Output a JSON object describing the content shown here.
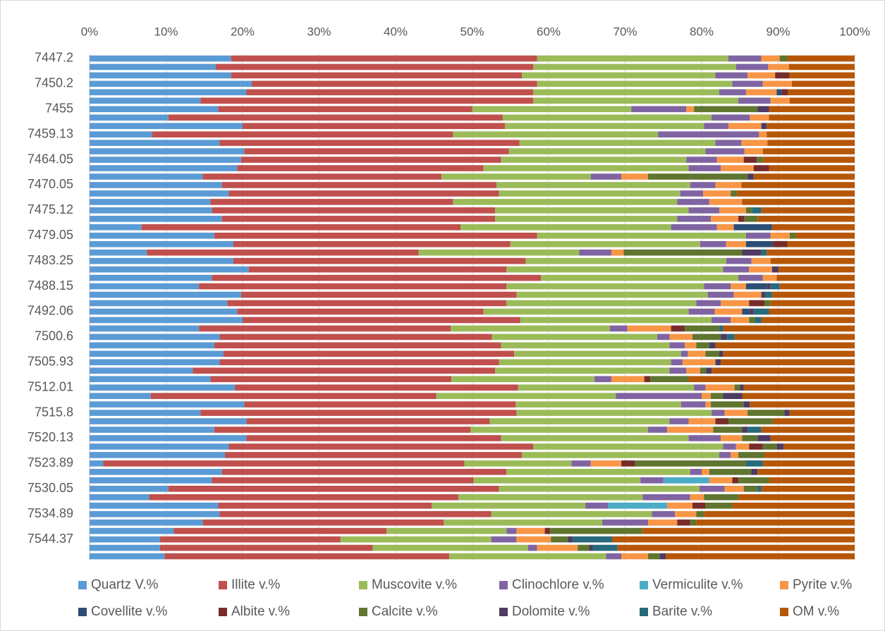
{
  "chart_data": {
    "type": "stacked_bar_100",
    "orientation": "horizontal",
    "categories": [
      "7447.2",
      null,
      null,
      "7450.2",
      null,
      null,
      "7455",
      null,
      null,
      "7459.13",
      null,
      null,
      "7464.05",
      null,
      null,
      "7470.05",
      null,
      null,
      "7475.12",
      null,
      null,
      "7479.05",
      null,
      null,
      "7483.25",
      null,
      null,
      "7488.15",
      null,
      null,
      "7492.06",
      null,
      null,
      "7500.6",
      null,
      null,
      "7505.93",
      null,
      null,
      "7512.01",
      null,
      null,
      "7515.8",
      null,
      null,
      "7520.13",
      null,
      null,
      "7523.89",
      null,
      null,
      "7530.05",
      null,
      null,
      "7534.89",
      null,
      null,
      "7544.37",
      null,
      null
    ],
    "xlim": [
      0,
      100
    ],
    "xticks": [
      {
        "value": 0,
        "label": "0%"
      },
      {
        "value": 10,
        "label": "10%"
      },
      {
        "value": 20,
        "label": "20%"
      },
      {
        "value": 30,
        "label": "30%"
      },
      {
        "value": 40,
        "label": "40%"
      },
      {
        "value": 50,
        "label": "50%"
      },
      {
        "value": 60,
        "label": "60%"
      },
      {
        "value": 70,
        "label": "70%"
      },
      {
        "value": 80,
        "label": "80%"
      },
      {
        "value": 90,
        "label": "90%"
      },
      {
        "value": 100,
        "label": "100%"
      }
    ],
    "grid": true,
    "legend": "bottom",
    "series": [
      {
        "name": "Quartz V.%",
        "color": "#5b9bd5",
        "values": [
          18.5,
          16.5,
          18.5,
          21.2,
          20.5,
          14.5,
          16.8,
          10.3,
          20,
          8.2,
          17,
          20.2,
          19.8,
          19.3,
          14.8,
          17.3,
          18.2,
          15.8,
          16,
          17.3,
          6.8,
          16.3,
          18.8,
          7.5,
          18.8,
          20.8,
          16,
          14.3,
          19.8,
          18,
          19.3,
          20,
          14.3,
          17,
          16.3,
          17.5,
          17,
          13.5,
          15.8,
          19,
          8,
          20.2,
          14.5,
          20.5,
          16.3,
          20.5,
          18.2,
          17.7,
          1.8,
          17.3,
          16,
          10.3,
          7.8,
          16.8,
          17,
          14.8,
          11,
          9.2,
          9.2,
          9.8
        ]
      },
      {
        "name": "Illite v.%",
        "color": "#c0504d",
        "values": [
          40,
          41.5,
          38,
          37.3,
          37.5,
          43.5,
          33.2,
          43.7,
          34.3,
          39.3,
          39.2,
          34.6,
          34,
          32.2,
          31.2,
          35.9,
          35.3,
          31.7,
          37,
          35.7,
          41.7,
          42.2,
          36.2,
          35.5,
          38.2,
          33.7,
          43,
          40.2,
          36,
          36.5,
          32.2,
          36.3,
          32.9,
          35.6,
          37.5,
          38,
          36.5,
          39.5,
          31.5,
          37,
          37.3,
          35.5,
          41.3,
          31.8,
          33.5,
          33.3,
          39.8,
          38.8,
          47.2,
          37.2,
          34.2,
          43.2,
          40.4,
          27.9,
          35.5,
          31.5,
          27.8,
          23.6,
          27.8,
          37.2
        ]
      },
      {
        "name": "Muscovite v.%",
        "color": "#9bbb59",
        "values": [
          25,
          26.5,
          25.3,
          25.5,
          24.3,
          26.8,
          20.8,
          27.3,
          26,
          26.8,
          25.6,
          25.7,
          24.2,
          26.8,
          19.5,
          25.3,
          23.7,
          29.3,
          25.3,
          23.8,
          27.5,
          27.3,
          24.8,
          21,
          26.2,
          28.3,
          25.8,
          25.8,
          25,
          24.8,
          26.8,
          25,
          20.8,
          21.6,
          22,
          21.8,
          22.5,
          22.8,
          18.7,
          23,
          23.5,
          21.6,
          25.5,
          23.5,
          23.2,
          24.5,
          24.8,
          25.8,
          14,
          24,
          21.8,
          26.2,
          24.1,
          20.1,
          21,
          20.7,
          15.7,
          19.7,
          20.3,
          20.5
        ]
      },
      {
        "name": "Clinochlore v.%",
        "color": "#8064a2",
        "values": [
          4.3,
          4.2,
          4.2,
          4,
          3.5,
          4.2,
          7.2,
          5,
          3.2,
          13.2,
          3.4,
          5.1,
          4,
          4.2,
          4,
          3.3,
          3,
          4.2,
          4,
          4.4,
          6,
          3.2,
          3.4,
          4.2,
          3.3,
          3.4,
          3.2,
          3.5,
          3.4,
          3.2,
          3.4,
          2.5,
          2.3,
          1.6,
          2,
          0.9,
          1.5,
          2.2,
          2.2,
          1.5,
          11.2,
          3.2,
          1.7,
          2.5,
          2.5,
          4.2,
          1.7,
          1.5,
          2.5,
          1.5,
          3,
          3.3,
          6.2,
          3,
          3,
          6,
          1.3,
          3.3,
          1.2,
          2
        ]
      },
      {
        "name": "Vermiculite v.%",
        "color": "#4bacc6",
        "values": [
          0,
          0,
          0,
          0,
          0,
          0,
          0,
          0,
          0,
          0,
          0,
          0,
          0,
          0,
          0,
          0,
          0,
          0,
          0,
          0,
          0,
          0,
          0,
          0,
          0,
          0,
          0,
          0,
          0,
          0,
          0,
          0,
          0,
          0,
          0,
          0,
          0,
          0,
          0,
          0,
          0,
          0,
          0,
          0,
          0,
          0,
          0,
          0,
          0,
          0,
          6,
          0,
          0,
          7.7,
          0,
          0,
          0,
          0,
          0,
          0
        ]
      },
      {
        "name": "Pyrite v.%",
        "color": "#f79646",
        "values": [
          2.4,
          2.7,
          3.6,
          3.8,
          4,
          2.5,
          1,
          2.5,
          4.3,
          1,
          3.4,
          2.4,
          3.5,
          4.3,
          3.5,
          3.4,
          3.6,
          4.3,
          3.5,
          3.6,
          2.2,
          2.5,
          2.6,
          1.6,
          2.5,
          3,
          1.8,
          2,
          3.6,
          3.7,
          3.6,
          2.4,
          5.7,
          3,
          1.5,
          2.3,
          4.3,
          1.8,
          4.3,
          3.8,
          1.2,
          0.7,
          3,
          3.5,
          6,
          2.8,
          1.7,
          1,
          4,
          1,
          3,
          2.5,
          1.8,
          3.3,
          2.8,
          3.8,
          3.7,
          4.5,
          5.3,
          3.5
        ]
      },
      {
        "name": "Covellite v.%",
        "color": "#2c4d75",
        "values": [
          0,
          0,
          0,
          0,
          0.7,
          0,
          0,
          0,
          0,
          0,
          0,
          0,
          0,
          0,
          0,
          0,
          0,
          0,
          0,
          0,
          5,
          0,
          3.5,
          0,
          0,
          0,
          0,
          2.7,
          0,
          0,
          0.9,
          0,
          0,
          0,
          0,
          0,
          0,
          0,
          0,
          0,
          0,
          0,
          0,
          0,
          0,
          0,
          0,
          0,
          0,
          0,
          0,
          0,
          0,
          0,
          0,
          0,
          0,
          0,
          0,
          0
        ]
      },
      {
        "name": "Albite v.%",
        "color": "#772c2a",
        "values": [
          0,
          0,
          1.9,
          0,
          0.8,
          0,
          0,
          0,
          0,
          0,
          0,
          0,
          1.7,
          2,
          0,
          0,
          0,
          0,
          0,
          0.8,
          0,
          0,
          1.9,
          0,
          0,
          0,
          0,
          0,
          0,
          2,
          0,
          0,
          1.8,
          0,
          0,
          0,
          0,
          0,
          0.8,
          0,
          0,
          0,
          0,
          1.7,
          0,
          0,
          1.8,
          0,
          1.8,
          0,
          0.8,
          0,
          0,
          1.7,
          0,
          1.7,
          0.7,
          0,
          0,
          0
        ]
      },
      {
        "name": "Calcite v.%",
        "color": "#5f7530",
        "values": [
          1,
          0,
          0,
          0,
          0,
          0,
          8.3,
          0,
          0,
          0,
          0,
          0,
          0.8,
          0,
          13,
          0,
          0.8,
          0,
          0.8,
          1.7,
          0,
          0.8,
          0,
          15.5,
          0,
          0,
          0,
          0,
          0,
          0.8,
          0,
          0.8,
          4.5,
          3.7,
          1.7,
          1.8,
          0,
          0.8,
          5,
          0.7,
          1.6,
          4.3,
          4.8,
          5.8,
          3.8,
          2,
          1.8,
          3.4,
          14.5,
          5.5,
          4,
          1.8,
          4.5,
          3.5,
          1,
          0.8,
          12,
          2.2,
          1.5,
          1.5
        ]
      },
      {
        "name": "Dolomite v.%",
        "color": "#4d3b62",
        "values": [
          0,
          0,
          0,
          0,
          0,
          0,
          1.5,
          0,
          0.7,
          0,
          0,
          0,
          0,
          0,
          0.8,
          0,
          0,
          0,
          0,
          0,
          0,
          0,
          0,
          2.5,
          0,
          0.8,
          0,
          0.5,
          0.5,
          0,
          0.6,
          0,
          0,
          0.8,
          0.8,
          0.5,
          0.7,
          0.7,
          0,
          0.5,
          2.5,
          0.8,
          0.7,
          0,
          0.7,
          1.7,
          0.9,
          0,
          0,
          0.8,
          0,
          0,
          0,
          0,
          0,
          0,
          0,
          0.7,
          0.5,
          0.8
        ]
      },
      {
        "name": "Barite v.%",
        "color": "#276a7c",
        "values": [
          0,
          0,
          0,
          0,
          0,
          0,
          0,
          0,
          0,
          0,
          0,
          0,
          0,
          0,
          0,
          0,
          0,
          0,
          1.2,
          0,
          0,
          0,
          0,
          0.7,
          0,
          0,
          0,
          1.2,
          0.9,
          0,
          2,
          0.8,
          0.5,
          1,
          0,
          0,
          0,
          0,
          0,
          0,
          0,
          0,
          0,
          0,
          1.8,
          0,
          0,
          0,
          2.2,
          0,
          0,
          0.5,
          0,
          0,
          0,
          0,
          0,
          5.1,
          3.2,
          0
        ]
      },
      {
        "name": "OM v.%",
        "color": "#b65708",
        "values": [
          8.8,
          8.6,
          8.5,
          8.2,
          8.7,
          8.5,
          11.2,
          11.2,
          11.5,
          11.5,
          11.4,
          12,
          12,
          11.2,
          13.2,
          14.8,
          15.4,
          14.7,
          12.2,
          12.7,
          10.8,
          7.7,
          8.8,
          11.5,
          11,
          10,
          10.2,
          9.8,
          10.8,
          11,
          11.2,
          12.2,
          17.2,
          15.7,
          18.2,
          17.2,
          17.5,
          18.7,
          21.7,
          14.5,
          14.7,
          13.7,
          8.5,
          10.7,
          12.2,
          11,
          9.3,
          11.8,
          12,
          12.7,
          11.2,
          12.2,
          15.2,
          16,
          19.7,
          20.7,
          27.8,
          31.7,
          31,
          24.7
        ]
      }
    ]
  }
}
